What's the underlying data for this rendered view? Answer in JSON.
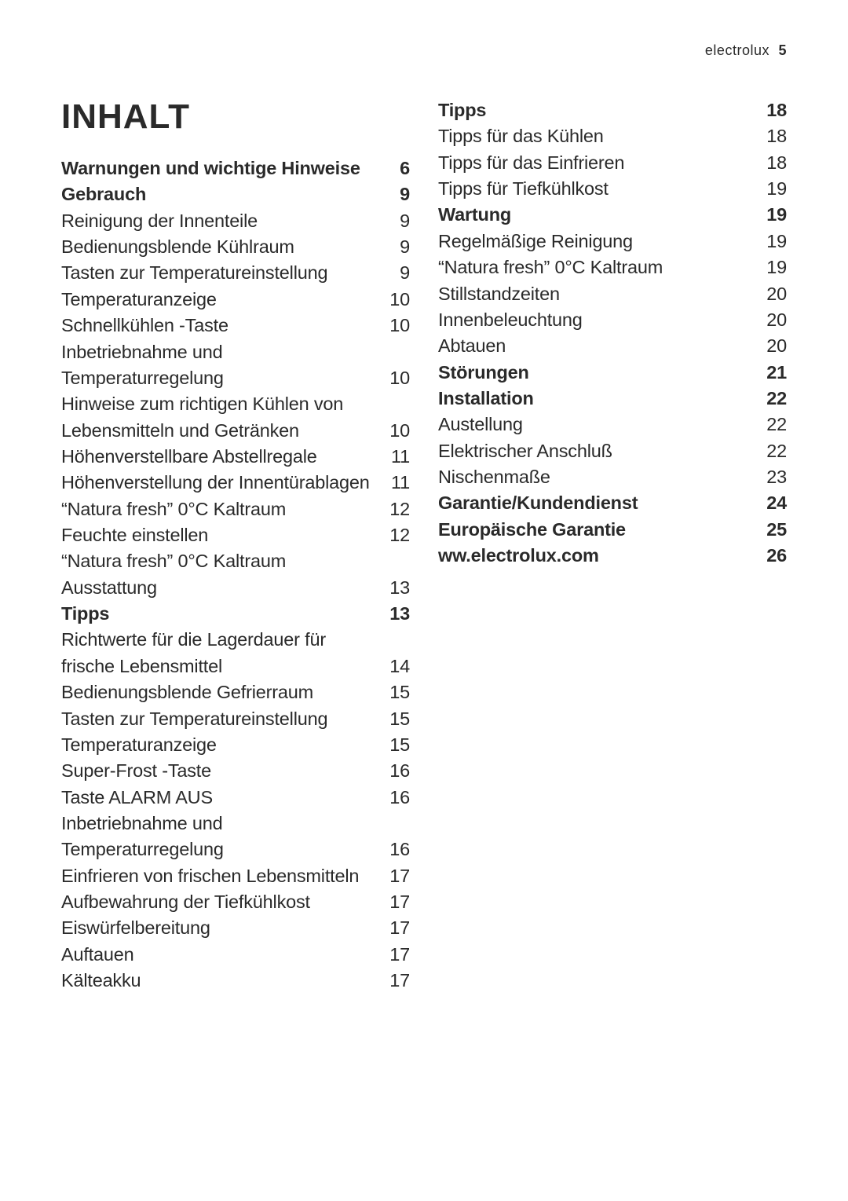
{
  "header": {
    "brand": "electrolux",
    "page_number": "5"
  },
  "title": "INHALT",
  "left_column": [
    {
      "label": "Warnungen und wichtige Hinweise",
      "page": "6",
      "bold": true
    },
    {
      "label": "Gebrauch",
      "page": "9",
      "bold": true
    },
    {
      "label": "Reinigung der Innenteile",
      "page": "9"
    },
    {
      "label": "Bedienungsblende Kühlraum",
      "page": "9"
    },
    {
      "label": "Tasten zur Temperatureinstellung",
      "page": "9"
    },
    {
      "label": "Temperaturanzeige",
      "page": "10"
    },
    {
      "label": "Schnellkühlen -Taste",
      "page": "10"
    },
    {
      "label": "Inbetriebnahme und",
      "page": "",
      "cont": true
    },
    {
      "label": "Temperaturregelung",
      "page": "10"
    },
    {
      "label": "Hinweise zum richtigen Kühlen von",
      "page": "",
      "cont": true
    },
    {
      "label": "Lebensmitteln und Getränken",
      "page": "10"
    },
    {
      "label": "Höhenverstellbare Abstellregale",
      "page": "11"
    },
    {
      "label": "Höhenverstellung der Innentürablagen",
      "page": "11"
    },
    {
      "label": "“Natura fresh” 0°C Kaltraum",
      "page": "12"
    },
    {
      "label": "Feuchte einstellen",
      "page": "12"
    },
    {
      "label": "“Natura fresh” 0°C Kaltraum",
      "page": "",
      "cont": true
    },
    {
      "label": "Ausstattung",
      "page": "13"
    },
    {
      "label": "Tipps",
      "page": "13",
      "bold": true
    },
    {
      "label": "Richtwerte für die Lagerdauer für",
      "page": "",
      "cont": true
    },
    {
      "label": "frische Lebensmittel",
      "page": "14"
    },
    {
      "label": "Bedienungsblende Gefrierraum",
      "page": "15"
    },
    {
      "label": "Tasten zur Temperatureinstellung",
      "page": "15"
    },
    {
      "label": "Temperaturanzeige",
      "page": "15"
    },
    {
      "label": "Super-Frost -Taste",
      "page": "16"
    },
    {
      "label": "Taste ALARM AUS",
      "page": "16"
    },
    {
      "label": "Inbetriebnahme und",
      "page": "",
      "cont": true
    },
    {
      "label": "Temperaturregelung",
      "page": "16"
    },
    {
      "label": "Einfrieren von frischen Lebensmitteln",
      "page": "17"
    },
    {
      "label": "Aufbewahrung der Tiefkühlkost",
      "page": "17"
    },
    {
      "label": "Eiswürfelbereitung",
      "page": "17"
    },
    {
      "label": "Auftauen",
      "page": "17"
    },
    {
      "label": "Kälteakku",
      "page": "17"
    }
  ],
  "right_column": [
    {
      "label": "Tipps",
      "page": "18",
      "bold": true
    },
    {
      "label": "Tipps für das Kühlen",
      "page": "18"
    },
    {
      "label": "Tipps für das Einfrieren",
      "page": "18"
    },
    {
      "label": "Tipps für Tiefkühlkost",
      "page": "19"
    },
    {
      "label": "Wartung",
      "page": "19",
      "bold": true
    },
    {
      "label": "Regelmäßige Reinigung",
      "page": "19"
    },
    {
      "label": "“Natura fresh” 0°C Kaltraum",
      "page": "19"
    },
    {
      "label": "Stillstandzeiten",
      "page": "20"
    },
    {
      "label": "Innenbeleuchtung",
      "page": "20"
    },
    {
      "label": "Abtauen",
      "page": "20"
    },
    {
      "label": "Störungen",
      "page": "21",
      "bold": true
    },
    {
      "label": "Installation",
      "page": "22",
      "bold": true
    },
    {
      "label": "Austellung",
      "page": "22"
    },
    {
      "label": "Elektrischer Anschluß",
      "page": "22"
    },
    {
      "label": "Nischenmaße",
      "page": "23"
    },
    {
      "label": "Garantie/Kundendienst",
      "page": "24",
      "bold": true
    },
    {
      "label": "Europäische Garantie",
      "page": "25",
      "bold": true
    },
    {
      "label": "ww.electrolux.com",
      "page": "26",
      "bold": true
    }
  ]
}
